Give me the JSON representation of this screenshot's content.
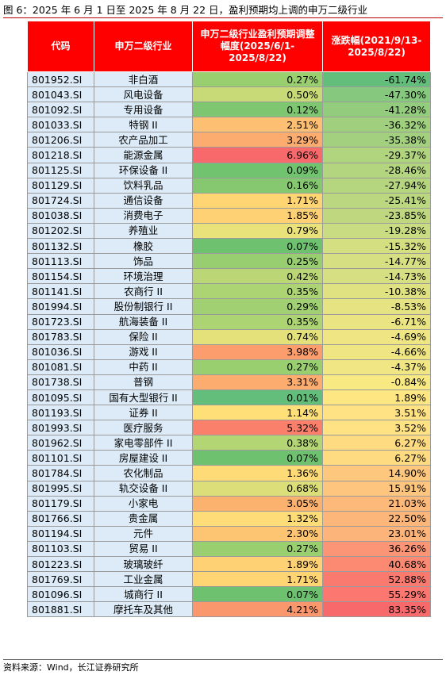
{
  "title": "图 6：2025 年 6 月 1 日至 2025 年 8 月 22 日，盈利预期均上调的申万二级行业",
  "headers": [
    "代码",
    "申万二级行业",
    "申万二级行业盈利预期调整幅度(2025/6/1-2025/8/22)",
    "涨跌幅(2021/9/13-2025/8/22)"
  ],
  "rows": [
    {
      "code": "801952.SI",
      "industry": "非白酒",
      "adj": "0.27%",
      "chg": "-61.74%",
      "adj_color": "#9acf6f",
      "chg_color": "#63be7b"
    },
    {
      "code": "801043.SI",
      "industry": "风电设备",
      "adj": "0.50%",
      "chg": "-47.30%",
      "adj_color": "#c8da77",
      "chg_color": "#86c87d"
    },
    {
      "code": "801092.SI",
      "industry": "专用设备",
      "adj": "0.12%",
      "chg": "-41.28%",
      "adj_color": "#7ec670",
      "chg_color": "#94cc7e"
    },
    {
      "code": "801033.SI",
      "industry": "特钢 II",
      "adj": "2.51%",
      "chg": "-36.32%",
      "adj_color": "#fdbf71",
      "chg_color": "#a0cf7e"
    },
    {
      "code": "801206.SI",
      "industry": "农产品加工",
      "adj": "3.29%",
      "chg": "-35.38%",
      "adj_color": "#fcac6e",
      "chg_color": "#a2d07f"
    },
    {
      "code": "801218.SI",
      "industry": "能源金属",
      "adj": "6.96%",
      "chg": "-29.37%",
      "adj_color": "#f8696b",
      "chg_color": "#b1d47f"
    },
    {
      "code": "801125.SI",
      "industry": "环保设备 II",
      "adj": "0.09%",
      "chg": "-28.46%",
      "adj_color": "#72c36f",
      "chg_color": "#b3d57f"
    },
    {
      "code": "801129.SI",
      "industry": "饮料乳品",
      "adj": "0.16%",
      "chg": "-27.94%",
      "adj_color": "#85c870",
      "chg_color": "#b5d57f"
    },
    {
      "code": "801724.SI",
      "industry": "通信设备",
      "adj": "1.71%",
      "chg": "-25.41%",
      "adj_color": "#ffd574",
      "chg_color": "#bbd780"
    },
    {
      "code": "801038.SI",
      "industry": "消费电子",
      "adj": "1.85%",
      "chg": "-23.85%",
      "adj_color": "#fed274",
      "chg_color": "#bfd880"
    },
    {
      "code": "801202.SI",
      "industry": "养殖业",
      "adj": "0.79%",
      "chg": "-19.28%",
      "adj_color": "#e9e27b",
      "chg_color": "#cadc81"
    },
    {
      "code": "801132.SI",
      "industry": "橡胶",
      "adj": "0.07%",
      "chg": "-15.32%",
      "adj_color": "#6ec26f",
      "chg_color": "#d4df81"
    },
    {
      "code": "801113.SI",
      "industry": "饰品",
      "adj": "0.25%",
      "chg": "-14.77%",
      "adj_color": "#98ce70",
      "chg_color": "#d6df81"
    },
    {
      "code": "801154.SI",
      "industry": "环境治理",
      "adj": "0.42%",
      "chg": "-14.73%",
      "adj_color": "#bbd775",
      "chg_color": "#d6df81"
    },
    {
      "code": "801141.SI",
      "industry": "农商行 II",
      "adj": "0.35%",
      "chg": "-10.38%",
      "adj_color": "#add473",
      "chg_color": "#e0e282"
    },
    {
      "code": "801994.SI",
      "industry": "股份制银行 II",
      "adj": "0.29%",
      "chg": "-8.53%",
      "adj_color": "#a0d072",
      "chg_color": "#e5e382"
    },
    {
      "code": "801723.SI",
      "industry": "航海装备 II",
      "adj": "0.35%",
      "chg": "-6.71%",
      "adj_color": "#add473",
      "chg_color": "#eae582"
    },
    {
      "code": "801783.SI",
      "industry": "保险 II",
      "adj": "0.74%",
      "chg": "-4.69%",
      "adj_color": "#e4e17a",
      "chg_color": "#efe683"
    },
    {
      "code": "801036.SI",
      "industry": "游戏 II",
      "adj": "3.98%",
      "chg": "-4.66%",
      "adj_color": "#fb9d6c",
      "chg_color": "#efe683"
    },
    {
      "code": "801081.SI",
      "industry": "中药 II",
      "adj": "0.27%",
      "chg": "-4.37%",
      "adj_color": "#9acf6f",
      "chg_color": "#f0e683"
    },
    {
      "code": "801738.SI",
      "industry": "普钢",
      "adj": "3.31%",
      "chg": "-0.84%",
      "adj_color": "#fcac6e",
      "chg_color": "#f8e983"
    },
    {
      "code": "801095.SI",
      "industry": "国有大型银行 II",
      "adj": "0.01%",
      "chg": "1.89%",
      "adj_color": "#63be7b",
      "chg_color": "#fee683"
    },
    {
      "code": "801193.SI",
      "industry": "证券 II",
      "adj": "1.14%",
      "chg": "3.51%",
      "adj_color": "#fedf78",
      "chg_color": "#fee283"
    },
    {
      "code": "801993.SI",
      "industry": "医疗服务",
      "adj": "5.32%",
      "chg": "3.52%",
      "adj_color": "#fa806b",
      "chg_color": "#fee283"
    },
    {
      "code": "801962.SI",
      "industry": "家电零部件 II",
      "adj": "0.38%",
      "chg": "6.27%",
      "adj_color": "#b3d574",
      "chg_color": "#fedb81"
    },
    {
      "code": "801101.SI",
      "industry": "房屋建设 II",
      "adj": "0.07%",
      "chg": "6.27%",
      "adj_color": "#6ec26f",
      "chg_color": "#fedb81"
    },
    {
      "code": "801784.SI",
      "industry": "农化制品",
      "adj": "1.36%",
      "chg": "14.90%",
      "adj_color": "#fedb76",
      "chg_color": "#fdc77d"
    },
    {
      "code": "801995.SI",
      "industry": "轨交设备 II",
      "adj": "0.68%",
      "chg": "15.91%",
      "adj_color": "#dcdf79",
      "chg_color": "#fdc57d"
    },
    {
      "code": "801179.SI",
      "industry": "小家电",
      "adj": "3.05%",
      "chg": "21.03%",
      "adj_color": "#fcb26f",
      "chg_color": "#fdb97a"
    },
    {
      "code": "801766.SI",
      "industry": "贵金属",
      "adj": "1.32%",
      "chg": "22.50%",
      "adj_color": "#fedc77",
      "chg_color": "#fdb67a"
    },
    {
      "code": "801194.SI",
      "industry": "元件",
      "adj": "2.30%",
      "chg": "23.01%",
      "adj_color": "#fdc572",
      "chg_color": "#fdb47a"
    },
    {
      "code": "801103.SI",
      "industry": "贸易 II",
      "adj": "0.27%",
      "chg": "36.26%",
      "adj_color": "#9acf6f",
      "chg_color": "#fc9575"
    },
    {
      "code": "801223.SI",
      "industry": "玻璃玻纤",
      "adj": "1.89%",
      "chg": "40.68%",
      "adj_color": "#fed174",
      "chg_color": "#fc8a73"
    },
    {
      "code": "801769.SI",
      "industry": "工业金属",
      "adj": "1.71%",
      "chg": "52.88%",
      "adj_color": "#ffd574",
      "chg_color": "#fb7a70"
    },
    {
      "code": "801096.SI",
      "industry": "城商行 II",
      "adj": "0.07%",
      "chg": "55.29%",
      "adj_color": "#6ec26f",
      "chg_color": "#fb776f"
    },
    {
      "code": "801881.SI",
      "industry": "摩托车及其他",
      "adj": "4.21%",
      "chg": "83.35%",
      "adj_color": "#fb976c",
      "chg_color": "#f8696b"
    }
  ],
  "source": "资料来源：Wind，长江证券研究所"
}
